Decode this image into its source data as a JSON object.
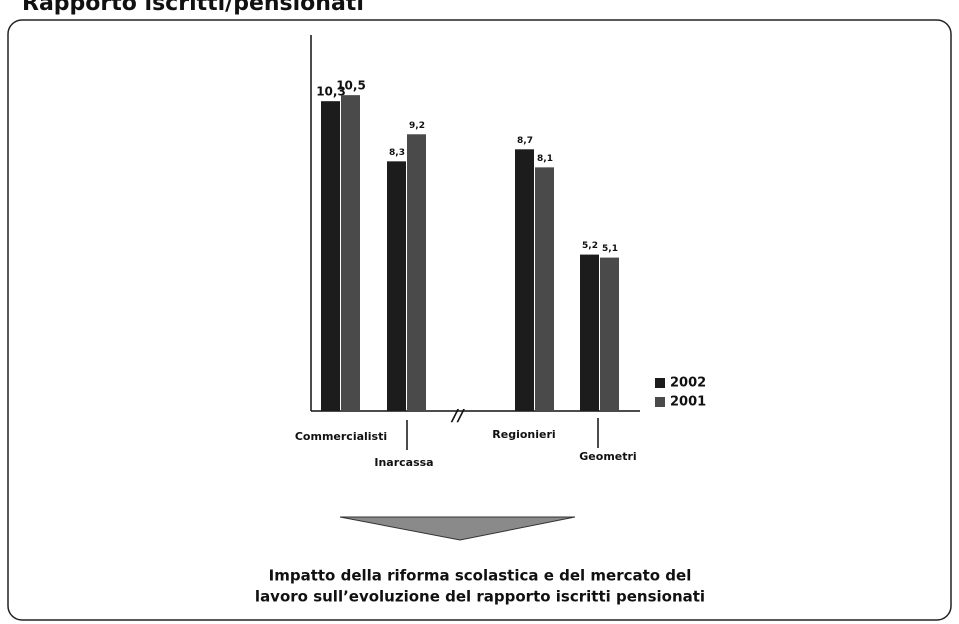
{
  "chart_data": {
    "type": "bar",
    "title": "Rapporto iscritti/pensionati",
    "categories": [
      "Commercialisti",
      "Inarcassa",
      "Regionieri",
      "Geometri"
    ],
    "series": [
      {
        "name": "2002",
        "color": "#1c1c1c",
        "values": [
          10.3,
          8.3,
          8.7,
          5.2
        ],
        "value_labels": [
          "10,3",
          "8,3",
          "8,7",
          "5,2"
        ]
      },
      {
        "name": "2001",
        "color": "#4a4a4a",
        "values": [
          10.5,
          9.2,
          8.1,
          5.1
        ],
        "value_labels": [
          "10,5",
          "9,2",
          "8,1",
          "5,1"
        ]
      }
    ],
    "ylim": [
      0,
      12.5
    ],
    "annotation": "//",
    "caption": [
      "Impatto della riforma scolastica e del mercato del",
      "lavoro sull’evoluzione del rapporto iscritti pensionati"
    ]
  }
}
